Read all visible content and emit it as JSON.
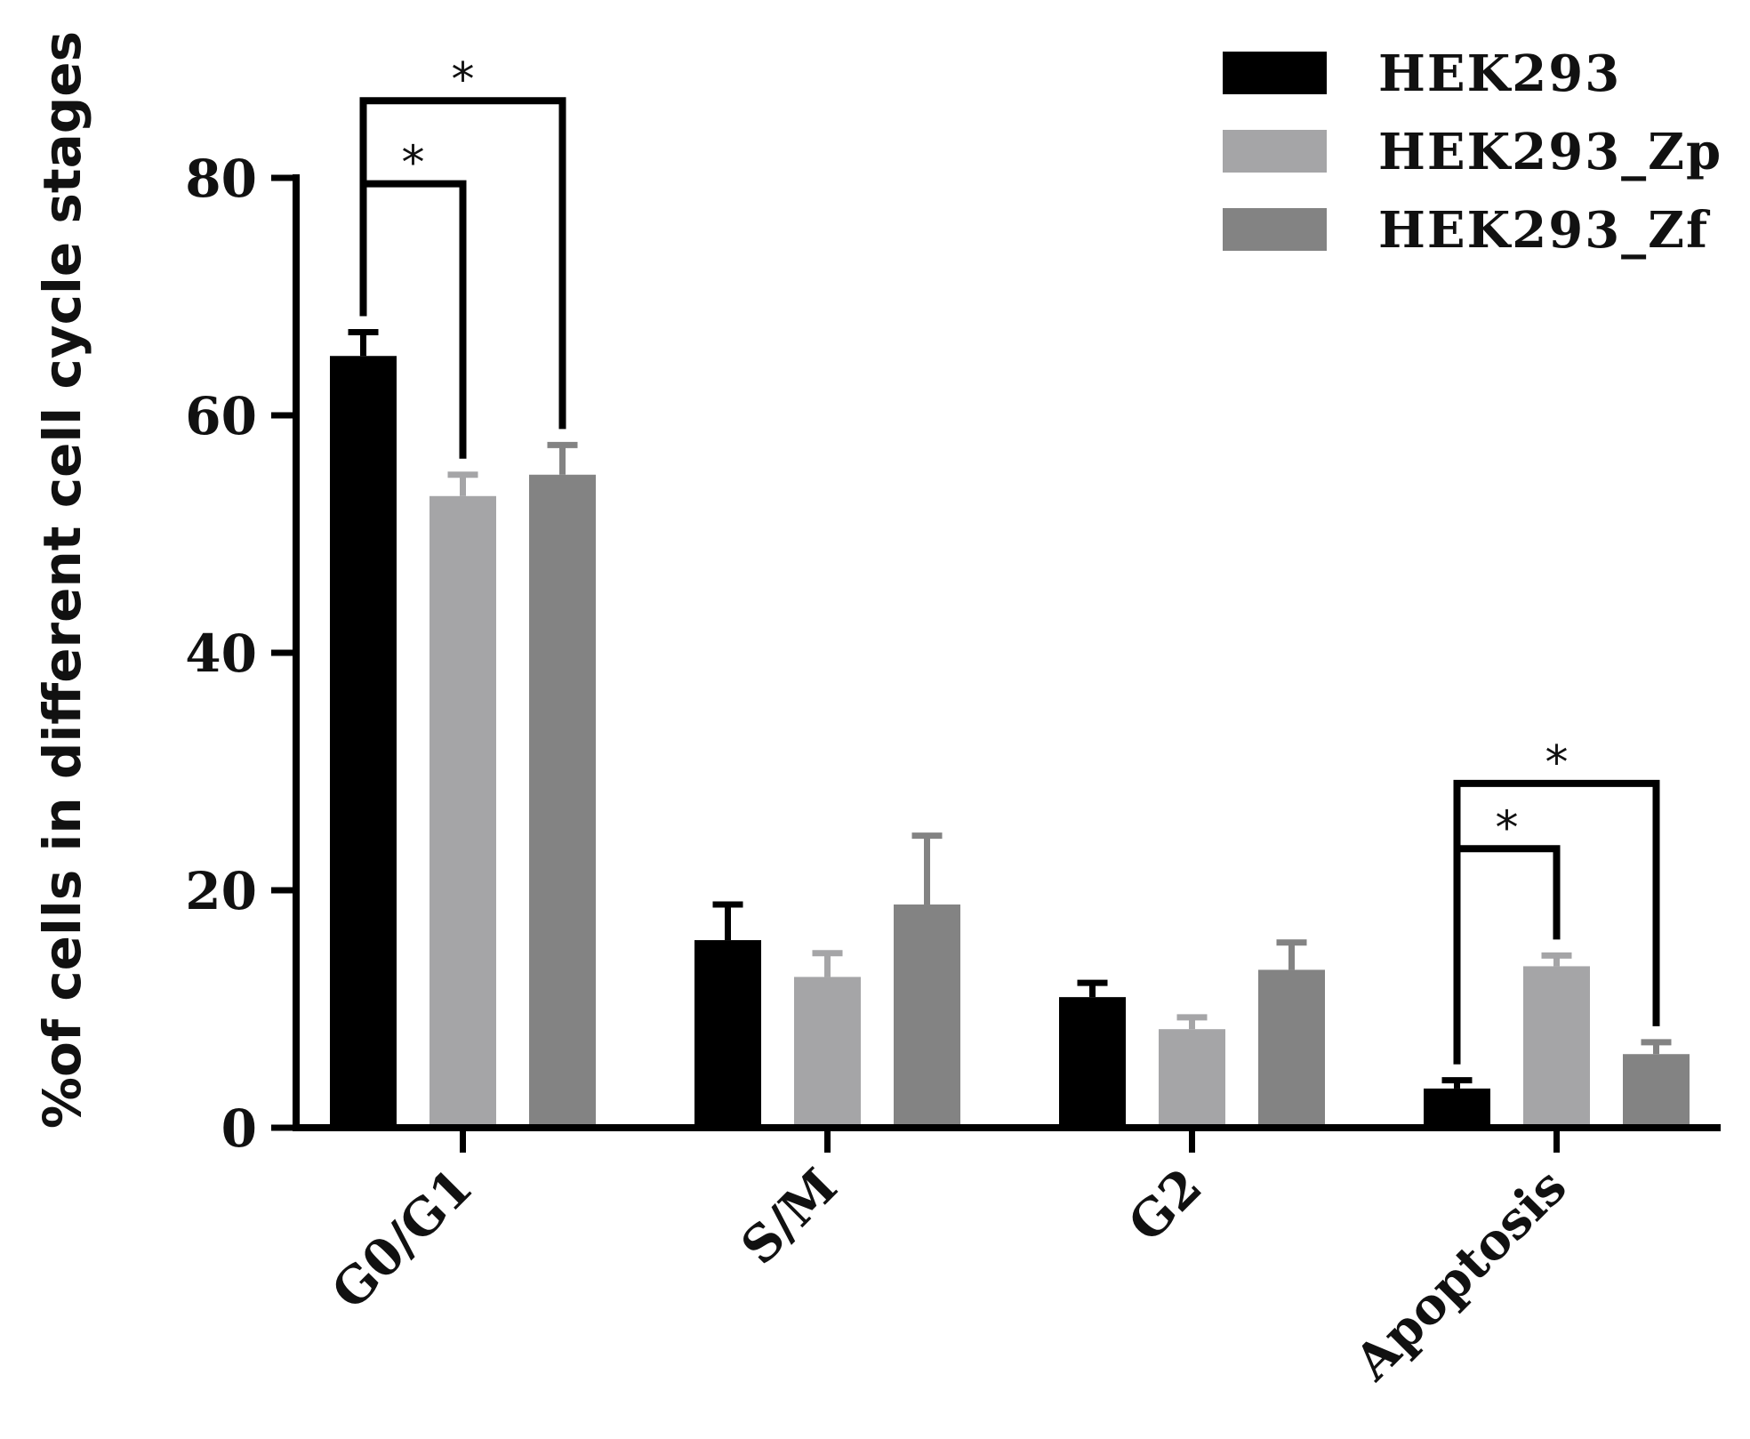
{
  "chart_data": {
    "type": "bar",
    "title": "",
    "xlabel": "",
    "ylabel": "%of cells in different cell cycle stages",
    "categories": [
      "G0/G1",
      "S/M",
      "G2",
      "Apoptosis"
    ],
    "ylim": [
      0,
      80
    ],
    "yticks": [
      0,
      20,
      40,
      60,
      80
    ],
    "grid": false,
    "legend_position": "top-right",
    "series": [
      {
        "name": "HEK293",
        "color": "#000000",
        "values": [
          65.0,
          15.8,
          11.0,
          3.3
        ],
        "errors": [
          2.0,
          3.0,
          1.2,
          0.7
        ]
      },
      {
        "name": "HEK293_Zp",
        "color": "#a5a5a7",
        "values": [
          53.2,
          12.7,
          8.3,
          13.6
        ],
        "errors": [
          1.8,
          2.0,
          1.0,
          0.9
        ]
      },
      {
        "name": "HEK293_Zf",
        "color": "#838383",
        "values": [
          55.0,
          18.8,
          13.3,
          6.2
        ],
        "errors": [
          2.5,
          5.8,
          2.3,
          1.0
        ]
      }
    ],
    "significance": [
      {
        "category": "G0/G1",
        "from_series": 0,
        "to_series": 1,
        "label": "*",
        "bar_y": 79.5
      },
      {
        "category": "G0/G1",
        "from_series": 0,
        "to_series": 2,
        "label": "*",
        "bar_y": 86.5
      },
      {
        "category": "Apoptosis",
        "from_series": 0,
        "to_series": 1,
        "label": "*",
        "bar_y": 23.5
      },
      {
        "category": "Apoptosis",
        "from_series": 0,
        "to_series": 2,
        "label": "*",
        "bar_y": 29.0
      }
    ]
  }
}
